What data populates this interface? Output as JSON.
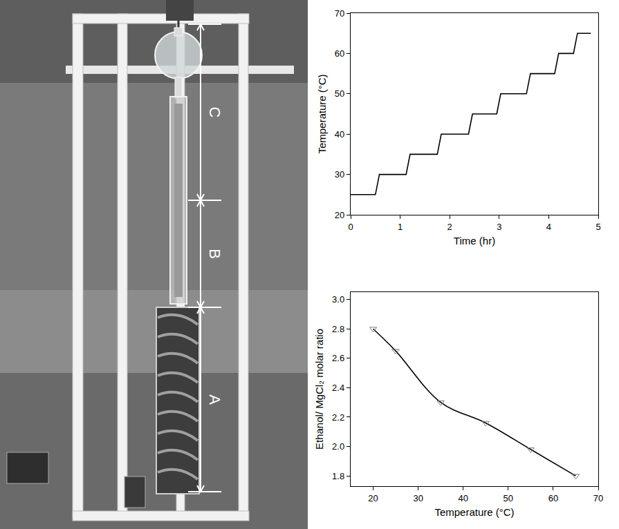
{
  "apparatus": {
    "labels": [
      "C",
      "B",
      "A"
    ]
  },
  "chart_data": [
    {
      "type": "line",
      "x_label": "Time (hr)",
      "y_label": "Temperature (°C)",
      "x": [
        0,
        0.5,
        0.58,
        1.12,
        1.2,
        1.75,
        1.83,
        2.38,
        2.46,
        2.95,
        3.03,
        3.55,
        3.63,
        4.12,
        4.2,
        4.5,
        4.58,
        4.85
      ],
      "values": [
        25,
        25,
        30,
        30,
        35,
        35,
        40,
        40,
        45,
        45,
        50,
        50,
        55,
        55,
        60,
        60,
        65,
        65
      ],
      "color": "#000000",
      "line_style": "solid",
      "xlim": [
        0,
        5
      ],
      "xticks": [
        0,
        1,
        2,
        3,
        4,
        5
      ],
      "ylim": [
        20,
        70
      ],
      "yticks": [
        20,
        30,
        40,
        50,
        60,
        70
      ],
      "grid": false
    },
    {
      "type": "line",
      "x_label": "Temperature (°C)",
      "y_label": "Ethanol/ MgCl₂ molar ratio",
      "x": [
        20,
        25,
        35,
        45,
        55,
        65
      ],
      "values": [
        2.8,
        2.65,
        2.3,
        2.16,
        1.98,
        1.8
      ],
      "color": "#000000",
      "marker": "triangle-down-open",
      "line_style": "spline",
      "xlim": [
        15,
        70
      ],
      "xticks": [
        20,
        30,
        40,
        50,
        60,
        70
      ],
      "ylim": [
        1.73,
        3.05
      ],
      "yticks": [
        {
          "value": 1.8,
          "label": "1.8"
        },
        {
          "value": 2,
          "label": "2.0"
        },
        2.2,
        2.4,
        2.6,
        2.8,
        {
          "value": 3,
          "label": "3.0"
        }
      ],
      "grid": false
    }
  ]
}
